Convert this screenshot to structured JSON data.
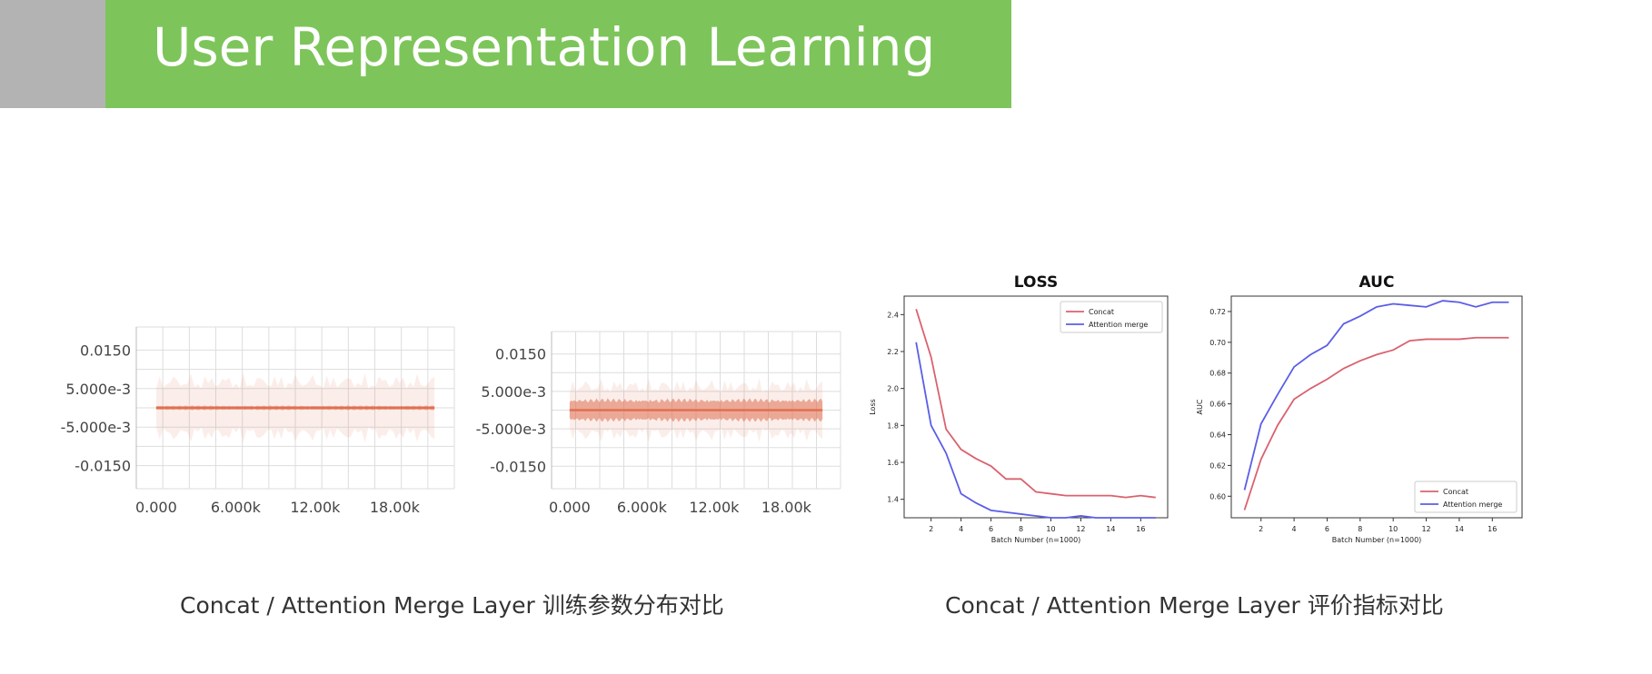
{
  "header": {
    "title": "User Representation Learning",
    "accent_color": "#7dc55a",
    "side_block_color": "#b3b3b3"
  },
  "captions": {
    "left": "Concat / Attention Merge Layer 训练参数分布对比",
    "right": "Concat / Attention Merge Layer 评价指标对比"
  },
  "chart_data": [
    {
      "type": "area",
      "title": "",
      "xlabel": "",
      "ylabel": "",
      "x_ticks": [
        "0.000",
        "6.000k",
        "12.00k",
        "18.00k"
      ],
      "x_tick_values": [
        0,
        6000,
        12000,
        18000
      ],
      "y_ticks": [
        "0.0150",
        "5.000e-3",
        "-5.000e-3",
        "-0.0150"
      ],
      "y_tick_values": [
        0.015,
        0.005,
        -0.005,
        -0.015
      ],
      "xlim": [
        -1500,
        22500
      ],
      "ylim": [
        -0.021,
        0.021
      ],
      "grid": true,
      "color": "#e07050",
      "series": [
        {
          "x_range": [
            0,
            21000
          ],
          "center": 0.0,
          "inner_band": 0.0006,
          "outer_band": 0.009
        }
      ]
    },
    {
      "type": "area",
      "title": "",
      "xlabel": "",
      "ylabel": "",
      "x_ticks": [
        "0.000",
        "6.000k",
        "12.00k",
        "18.00k"
      ],
      "x_tick_values": [
        0,
        6000,
        12000,
        18000
      ],
      "y_ticks": [
        "0.0150",
        "5.000e-3",
        "-5.000e-3",
        "-0.0150"
      ],
      "y_tick_values": [
        0.015,
        0.005,
        -0.005,
        -0.015
      ],
      "xlim": [
        -1500,
        22500
      ],
      "ylim": [
        -0.021,
        0.021
      ],
      "grid": true,
      "color": "#e07050",
      "series": [
        {
          "x_range": [
            0,
            21000
          ],
          "center": 0.0,
          "inner_band": 0.0032,
          "outer_band": 0.0085
        }
      ]
    },
    {
      "type": "line",
      "title": "LOSS",
      "xlabel": "Batch Number (n=1000)",
      "ylabel": "Loss",
      "x": [
        1,
        2,
        3,
        4,
        5,
        6,
        7,
        8,
        9,
        10,
        11,
        12,
        13,
        14,
        15,
        16,
        17
      ],
      "x_ticks": [
        2,
        4,
        6,
        8,
        10,
        12,
        14,
        16
      ],
      "y_ticks": [
        1.4,
        1.6,
        1.8,
        2.0,
        2.2,
        2.4
      ],
      "y_tick_labels": [
        "1.4",
        "1.6",
        "1.8",
        "2.0",
        "2.2",
        "2.4"
      ],
      "xlim": [
        0.2,
        17.8
      ],
      "ylim": [
        1.3,
        2.5
      ],
      "legend": "top-right",
      "series": [
        {
          "name": "Concat",
          "color": "#d9626f",
          "values": [
            2.43,
            2.17,
            1.78,
            1.67,
            1.62,
            1.58,
            1.51,
            1.51,
            1.44,
            1.43,
            1.42,
            1.42,
            1.42,
            1.42,
            1.41,
            1.42,
            1.41
          ]
        },
        {
          "name": "Attention merge",
          "color": "#5b5ee6",
          "values": [
            2.25,
            1.8,
            1.65,
            1.43,
            1.38,
            1.34,
            1.33,
            1.32,
            1.31,
            1.3,
            1.3,
            1.31,
            1.3,
            1.3,
            1.3,
            1.3,
            1.3
          ]
        }
      ]
    },
    {
      "type": "line",
      "title": "AUC",
      "xlabel": "Batch Number (n=1000)",
      "ylabel": "AUC",
      "x": [
        1,
        2,
        3,
        4,
        5,
        6,
        7,
        8,
        9,
        10,
        11,
        12,
        13,
        14,
        15,
        16,
        17
      ],
      "x_ticks": [
        2,
        4,
        6,
        8,
        10,
        12,
        14,
        16
      ],
      "y_ticks": [
        0.6,
        0.62,
        0.64,
        0.66,
        0.68,
        0.7,
        0.72
      ],
      "y_tick_labels": [
        "0.60",
        "0.62",
        "0.64",
        "0.66",
        "0.68",
        "0.70",
        "0.72"
      ],
      "xlim": [
        0.2,
        17.8
      ],
      "ylim": [
        0.586,
        0.73
      ],
      "legend": "bottom-right",
      "series": [
        {
          "name": "Concat",
          "color": "#d9626f",
          "values": [
            0.591,
            0.624,
            0.646,
            0.663,
            0.67,
            0.676,
            0.683,
            0.688,
            0.692,
            0.695,
            0.701,
            0.702,
            0.702,
            0.702,
            0.703,
            0.703,
            0.703
          ]
        },
        {
          "name": "Attention merge",
          "color": "#5b5ee6",
          "values": [
            0.604,
            0.647,
            0.666,
            0.684,
            0.692,
            0.698,
            0.712,
            0.717,
            0.723,
            0.725,
            0.724,
            0.723,
            0.727,
            0.726,
            0.723,
            0.726,
            0.726
          ]
        }
      ]
    }
  ]
}
